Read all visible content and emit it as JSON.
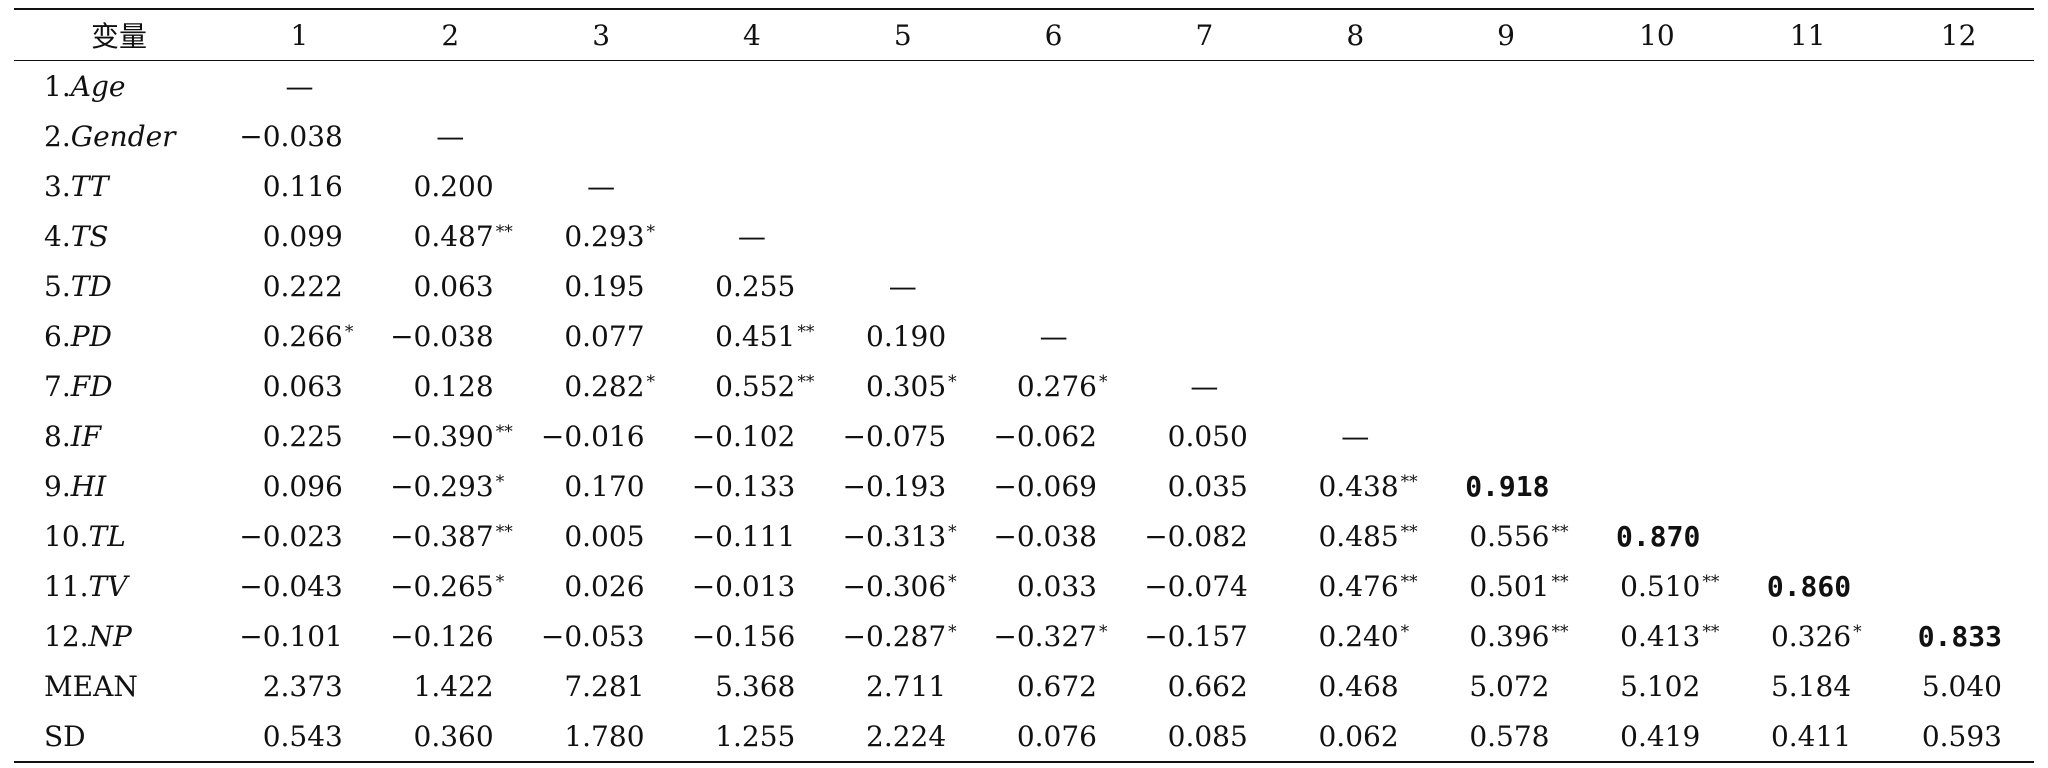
{
  "table": {
    "header": [
      "变量",
      "1",
      "2",
      "3",
      "4",
      "5",
      "6",
      "7",
      "8",
      "9",
      "10",
      "11",
      "12"
    ],
    "rows": [
      {
        "num": "1.",
        "name": "Age",
        "italic": true,
        "cells": [
          {
            "dash": true
          }
        ]
      },
      {
        "num": "2.",
        "name": "Gender",
        "italic": true,
        "cells": [
          {
            "v": "−0.038"
          },
          {
            "dash": true
          }
        ]
      },
      {
        "num": "3.",
        "name": "TT",
        "italic": true,
        "cells": [
          {
            "v": "0.116"
          },
          {
            "v": "0.200"
          },
          {
            "dash": true
          }
        ]
      },
      {
        "num": "4.",
        "name": "TS",
        "italic": true,
        "cells": [
          {
            "v": "0.099"
          },
          {
            "v": "0.487",
            "s": "**"
          },
          {
            "v": "0.293",
            "s": "*"
          },
          {
            "dash": true
          }
        ]
      },
      {
        "num": "5.",
        "name": "TD",
        "italic": true,
        "cells": [
          {
            "v": "0.222"
          },
          {
            "v": "0.063"
          },
          {
            "v": "0.195"
          },
          {
            "v": "0.255"
          },
          {
            "dash": true
          }
        ]
      },
      {
        "num": "6.",
        "name": "PD",
        "italic": true,
        "cells": [
          {
            "v": "0.266",
            "s": "*"
          },
          {
            "v": "−0.038"
          },
          {
            "v": "0.077"
          },
          {
            "v": "0.451",
            "s": "**"
          },
          {
            "v": "0.190"
          },
          {
            "dash": true
          }
        ]
      },
      {
        "num": "7.",
        "name": "FD",
        "italic": true,
        "cells": [
          {
            "v": "0.063"
          },
          {
            "v": "0.128"
          },
          {
            "v": "0.282",
            "s": "*"
          },
          {
            "v": "0.552",
            "s": "**"
          },
          {
            "v": "0.305",
            "s": "*"
          },
          {
            "v": "0.276",
            "s": "*"
          },
          {
            "dash": true
          }
        ]
      },
      {
        "num": "8.",
        "name": "IF",
        "italic": true,
        "cells": [
          {
            "v": "0.225"
          },
          {
            "v": "−0.390",
            "s": "**"
          },
          {
            "v": "−0.016"
          },
          {
            "v": "−0.102"
          },
          {
            "v": "−0.075"
          },
          {
            "v": "−0.062"
          },
          {
            "v": "0.050"
          },
          {
            "dash": true
          }
        ]
      },
      {
        "num": "9.",
        "name": "HI",
        "italic": true,
        "cells": [
          {
            "v": "0.096"
          },
          {
            "v": "−0.293",
            "s": "*"
          },
          {
            "v": "0.170"
          },
          {
            "v": "−0.133"
          },
          {
            "v": "−0.193"
          },
          {
            "v": "−0.069"
          },
          {
            "v": "0.035"
          },
          {
            "v": "0.438",
            "s": "**"
          },
          {
            "v": "0.918",
            "b": true
          }
        ]
      },
      {
        "num": "10.",
        "name": "TL",
        "italic": true,
        "cells": [
          {
            "v": "−0.023"
          },
          {
            "v": "−0.387",
            "s": "**"
          },
          {
            "v": "0.005"
          },
          {
            "v": "−0.111"
          },
          {
            "v": "−0.313",
            "s": "*"
          },
          {
            "v": "−0.038"
          },
          {
            "v": "−0.082"
          },
          {
            "v": "0.485",
            "s": "**"
          },
          {
            "v": "0.556",
            "s": "**"
          },
          {
            "v": "0.870",
            "b": true
          }
        ]
      },
      {
        "num": "11.",
        "name": "TV",
        "italic": true,
        "cells": [
          {
            "v": "−0.043"
          },
          {
            "v": "−0.265",
            "s": "*"
          },
          {
            "v": "0.026"
          },
          {
            "v": "−0.013"
          },
          {
            "v": "−0.306",
            "s": "*"
          },
          {
            "v": "0.033"
          },
          {
            "v": "−0.074"
          },
          {
            "v": "0.476",
            "s": "**"
          },
          {
            "v": "0.501",
            "s": "**"
          },
          {
            "v": "0.510",
            "s": "**"
          },
          {
            "v": "0.860",
            "b": true
          }
        ]
      },
      {
        "num": "12.",
        "name": "NP",
        "italic": true,
        "cells": [
          {
            "v": "−0.101"
          },
          {
            "v": "−0.126"
          },
          {
            "v": "−0.053"
          },
          {
            "v": "−0.156"
          },
          {
            "v": "−0.287",
            "s": "*"
          },
          {
            "v": "−0.327",
            "s": "*"
          },
          {
            "v": "−0.157"
          },
          {
            "v": "0.240",
            "s": "*"
          },
          {
            "v": "0.396",
            "s": "**"
          },
          {
            "v": "0.413",
            "s": "**"
          },
          {
            "v": "0.326",
            "s": "*"
          },
          {
            "v": "0.833",
            "b": true
          }
        ]
      },
      {
        "num": "",
        "name": "MEAN",
        "italic": false,
        "cells": [
          {
            "v": "2.373"
          },
          {
            "v": "1.422"
          },
          {
            "v": "7.281"
          },
          {
            "v": "5.368"
          },
          {
            "v": "2.711"
          },
          {
            "v": "0.672"
          },
          {
            "v": "0.662"
          },
          {
            "v": "0.468"
          },
          {
            "v": "5.072"
          },
          {
            "v": "5.102"
          },
          {
            "v": "5.184"
          },
          {
            "v": "5.040"
          }
        ]
      },
      {
        "num": "",
        "name": "SD",
        "italic": false,
        "cells": [
          {
            "v": "0.543"
          },
          {
            "v": "0.360"
          },
          {
            "v": "1.780"
          },
          {
            "v": "1.255"
          },
          {
            "v": "2.224"
          },
          {
            "v": "0.076"
          },
          {
            "v": "0.085"
          },
          {
            "v": "0.062"
          },
          {
            "v": "0.578"
          },
          {
            "v": "0.419"
          },
          {
            "v": "0.411"
          },
          {
            "v": "0.593"
          }
        ]
      }
    ]
  }
}
